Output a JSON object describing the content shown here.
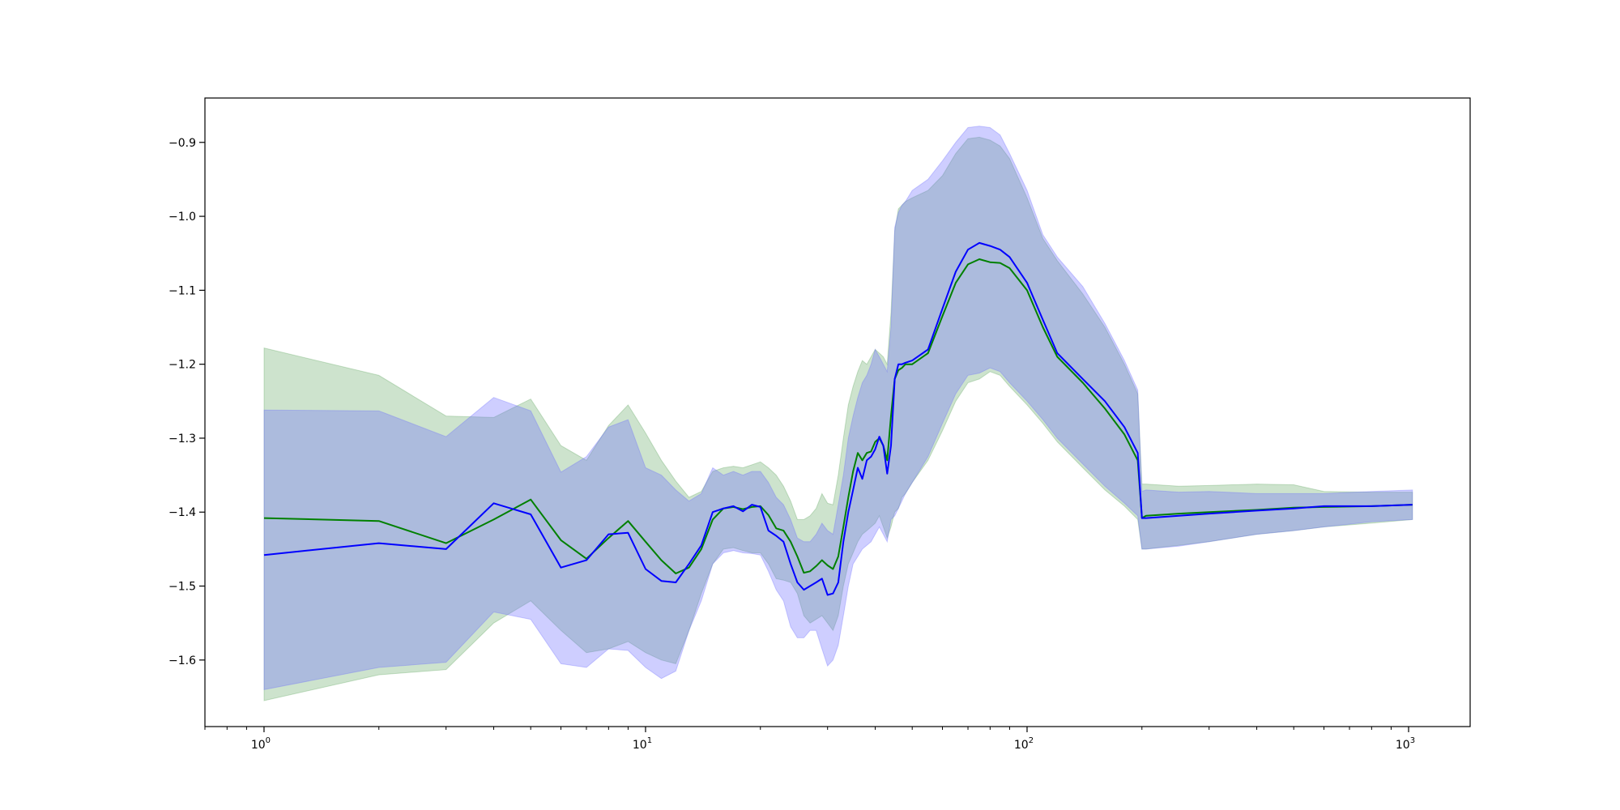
{
  "chart_data": {
    "type": "line",
    "title": "",
    "xlabel": "",
    "ylabel": "",
    "xscale": "log",
    "xlim": [
      0.7,
      1450
    ],
    "ylim": [
      -1.69,
      -0.84
    ],
    "grid": false,
    "legend": "none",
    "x_ticks": [
      {
        "value": 1,
        "base": "10",
        "exp": "0"
      },
      {
        "value": 10,
        "base": "10",
        "exp": "1"
      },
      {
        "value": 100,
        "base": "10",
        "exp": "2"
      },
      {
        "value": 1000,
        "base": "10",
        "exp": "3"
      }
    ],
    "y_ticks": [
      {
        "value": -0.9,
        "label": "−0.9"
      },
      {
        "value": -1.0,
        "label": "−1.0"
      },
      {
        "value": -1.1,
        "label": "−1.1"
      },
      {
        "value": -1.2,
        "label": "−1.2"
      },
      {
        "value": -1.3,
        "label": "−1.3"
      },
      {
        "value": -1.4,
        "label": "−1.4"
      },
      {
        "value": -1.5,
        "label": "−1.5"
      },
      {
        "value": -1.6,
        "label": "−1.6"
      }
    ],
    "series": [
      {
        "color": "#008000",
        "band_color": "#2e8b2e",
        "band_opacity": 0.24,
        "x": [
          1,
          2,
          3,
          4,
          5,
          6,
          7,
          8,
          9,
          10,
          11,
          12,
          13,
          14,
          15,
          16,
          17,
          18,
          19,
          20,
          21,
          22,
          23,
          24,
          25,
          26,
          27,
          28,
          29,
          30,
          31,
          32,
          33,
          34,
          35,
          36,
          37,
          38,
          39,
          40,
          41,
          42,
          43,
          44,
          45,
          46,
          47,
          48,
          50,
          55,
          60,
          65,
          70,
          75,
          80,
          85,
          90,
          100,
          110,
          120,
          140,
          160,
          180,
          195,
          200,
          205,
          250,
          300,
          400,
          500,
          600,
          800,
          1024
        ],
        "mean": [
          -1.408,
          -1.412,
          -1.442,
          -1.41,
          -1.383,
          -1.438,
          -1.463,
          -1.435,
          -1.412,
          -1.44,
          -1.465,
          -1.483,
          -1.475,
          -1.45,
          -1.41,
          -1.395,
          -1.393,
          -1.396,
          -1.393,
          -1.392,
          -1.404,
          -1.422,
          -1.425,
          -1.44,
          -1.46,
          -1.482,
          -1.48,
          -1.473,
          -1.465,
          -1.472,
          -1.477,
          -1.46,
          -1.42,
          -1.38,
          -1.345,
          -1.32,
          -1.33,
          -1.32,
          -1.318,
          -1.305,
          -1.3,
          -1.31,
          -1.33,
          -1.27,
          -1.22,
          -1.208,
          -1.205,
          -1.2,
          -1.2,
          -1.185,
          -1.135,
          -1.09,
          -1.065,
          -1.058,
          -1.062,
          -1.063,
          -1.07,
          -1.1,
          -1.15,
          -1.19,
          -1.225,
          -1.26,
          -1.295,
          -1.33,
          -1.408,
          -1.405,
          -1.402,
          -1.4,
          -1.397,
          -1.394,
          -1.393,
          -1.392,
          -1.39
        ],
        "upper": [
          -1.178,
          -1.215,
          -1.27,
          -1.272,
          -1.247,
          -1.31,
          -1.33,
          -1.283,
          -1.255,
          -1.293,
          -1.33,
          -1.358,
          -1.38,
          -1.372,
          -1.345,
          -1.34,
          -1.338,
          -1.34,
          -1.336,
          -1.332,
          -1.34,
          -1.35,
          -1.365,
          -1.385,
          -1.41,
          -1.41,
          -1.405,
          -1.395,
          -1.375,
          -1.388,
          -1.39,
          -1.35,
          -1.3,
          -1.255,
          -1.23,
          -1.21,
          -1.195,
          -1.2,
          -1.19,
          -1.18,
          -1.185,
          -1.19,
          -1.2,
          -1.13,
          -1.02,
          -0.99,
          -0.985,
          -0.98,
          -0.975,
          -0.965,
          -0.945,
          -0.915,
          -0.895,
          -0.893,
          -0.897,
          -0.905,
          -0.922,
          -0.975,
          -1.03,
          -1.06,
          -1.105,
          -1.15,
          -1.2,
          -1.24,
          -1.362,
          -1.362,
          -1.365,
          -1.364,
          -1.362,
          -1.363,
          -1.372,
          -1.373,
          -1.373
        ],
        "lower": [
          -1.655,
          -1.62,
          -1.613,
          -1.55,
          -1.52,
          -1.56,
          -1.59,
          -1.585,
          -1.575,
          -1.59,
          -1.6,
          -1.605,
          -1.56,
          -1.51,
          -1.47,
          -1.45,
          -1.448,
          -1.452,
          -1.455,
          -1.455,
          -1.47,
          -1.49,
          -1.492,
          -1.495,
          -1.51,
          -1.54,
          -1.55,
          -1.545,
          -1.54,
          -1.55,
          -1.56,
          -1.54,
          -1.5,
          -1.47,
          -1.455,
          -1.44,
          -1.43,
          -1.425,
          -1.42,
          -1.415,
          -1.405,
          -1.42,
          -1.435,
          -1.42,
          -1.4,
          -1.395,
          -1.38,
          -1.375,
          -1.36,
          -1.33,
          -1.29,
          -1.25,
          -1.225,
          -1.22,
          -1.21,
          -1.215,
          -1.23,
          -1.255,
          -1.28,
          -1.305,
          -1.34,
          -1.37,
          -1.392,
          -1.41,
          -1.45,
          -1.45,
          -1.445,
          -1.44,
          -1.43,
          -1.425,
          -1.42,
          -1.415,
          -1.41
        ]
      },
      {
        "color": "#0000ff",
        "band_color": "#6b6bff",
        "band_opacity": 0.33,
        "x": [
          1,
          2,
          3,
          4,
          5,
          6,
          7,
          8,
          9,
          10,
          11,
          12,
          13,
          14,
          15,
          16,
          17,
          18,
          19,
          20,
          21,
          22,
          23,
          24,
          25,
          26,
          27,
          28,
          29,
          30,
          31,
          32,
          33,
          34,
          35,
          36,
          37,
          38,
          39,
          40,
          41,
          42,
          43,
          44,
          45,
          46,
          47,
          48,
          50,
          55,
          60,
          65,
          70,
          75,
          80,
          85,
          90,
          100,
          110,
          120,
          140,
          160,
          180,
          195,
          200,
          205,
          250,
          300,
          400,
          500,
          600,
          800,
          1024
        ],
        "mean": [
          -1.458,
          -1.442,
          -1.45,
          -1.388,
          -1.403,
          -1.475,
          -1.465,
          -1.43,
          -1.428,
          -1.477,
          -1.493,
          -1.495,
          -1.47,
          -1.445,
          -1.4,
          -1.395,
          -1.392,
          -1.399,
          -1.39,
          -1.393,
          -1.425,
          -1.432,
          -1.44,
          -1.47,
          -1.495,
          -1.505,
          -1.5,
          -1.495,
          -1.49,
          -1.512,
          -1.51,
          -1.495,
          -1.44,
          -1.4,
          -1.37,
          -1.34,
          -1.355,
          -1.33,
          -1.325,
          -1.315,
          -1.298,
          -1.31,
          -1.348,
          -1.31,
          -1.22,
          -1.2,
          -1.2,
          -1.198,
          -1.195,
          -1.18,
          -1.125,
          -1.075,
          -1.045,
          -1.036,
          -1.04,
          -1.045,
          -1.055,
          -1.09,
          -1.14,
          -1.185,
          -1.22,
          -1.25,
          -1.285,
          -1.32,
          -1.408,
          -1.408,
          -1.405,
          -1.402,
          -1.398,
          -1.395,
          -1.392,
          -1.392,
          -1.39
        ],
        "upper": [
          -1.262,
          -1.263,
          -1.298,
          -1.245,
          -1.263,
          -1.346,
          -1.325,
          -1.285,
          -1.275,
          -1.34,
          -1.35,
          -1.37,
          -1.385,
          -1.375,
          -1.34,
          -1.35,
          -1.345,
          -1.35,
          -1.345,
          -1.345,
          -1.36,
          -1.38,
          -1.39,
          -1.41,
          -1.435,
          -1.44,
          -1.44,
          -1.43,
          -1.415,
          -1.425,
          -1.43,
          -1.39,
          -1.35,
          -1.3,
          -1.27,
          -1.245,
          -1.225,
          -1.215,
          -1.2,
          -1.18,
          -1.19,
          -1.2,
          -1.21,
          -1.15,
          -1.015,
          -0.995,
          -0.985,
          -0.98,
          -0.965,
          -0.95,
          -0.925,
          -0.9,
          -0.88,
          -0.878,
          -0.88,
          -0.89,
          -0.915,
          -0.965,
          -1.025,
          -1.055,
          -1.095,
          -1.145,
          -1.195,
          -1.235,
          -1.372,
          -1.37,
          -1.373,
          -1.372,
          -1.375,
          -1.375,
          -1.375,
          -1.372,
          -1.37
        ],
        "lower": [
          -1.64,
          -1.61,
          -1.603,
          -1.535,
          -1.545,
          -1.605,
          -1.61,
          -1.585,
          -1.587,
          -1.61,
          -1.625,
          -1.615,
          -1.56,
          -1.52,
          -1.47,
          -1.455,
          -1.452,
          -1.455,
          -1.456,
          -1.458,
          -1.48,
          -1.505,
          -1.52,
          -1.555,
          -1.57,
          -1.57,
          -1.56,
          -1.56,
          -1.585,
          -1.608,
          -1.6,
          -1.58,
          -1.54,
          -1.5,
          -1.47,
          -1.46,
          -1.45,
          -1.445,
          -1.44,
          -1.43,
          -1.42,
          -1.43,
          -1.44,
          -1.41,
          -1.405,
          -1.395,
          -1.385,
          -1.375,
          -1.36,
          -1.325,
          -1.28,
          -1.24,
          -1.215,
          -1.212,
          -1.205,
          -1.21,
          -1.225,
          -1.25,
          -1.275,
          -1.3,
          -1.335,
          -1.365,
          -1.388,
          -1.405,
          -1.45,
          -1.45,
          -1.446,
          -1.44,
          -1.43,
          -1.425,
          -1.42,
          -1.413,
          -1.41
        ]
      }
    ]
  }
}
